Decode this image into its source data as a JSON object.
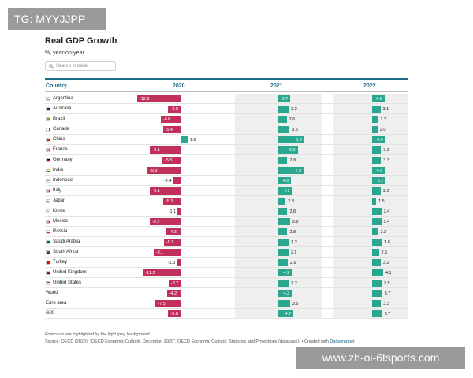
{
  "tag_label": "TG: MYYJJPP",
  "watermark": "www.zh-oi-6tsports.com",
  "title": "Real GDP Growth",
  "subtitle": "%, year-on-year",
  "search": {
    "placeholder": "Search in table"
  },
  "columns": {
    "country": "Country",
    "y2020": "2020",
    "y2021": "2021",
    "y2022": "2022"
  },
  "colors": {
    "negative": "#c0305a",
    "positive": "#2aa88f",
    "header": "#1d6b8c",
    "forecast_bg": "#efefef"
  },
  "rows": [
    {
      "country": "Argentina",
      "flag": "argentina-flag-icon",
      "v2020": -12.9,
      "v2021": 3.7,
      "v2022": 4.6
    },
    {
      "country": "Australia",
      "flag": "australia-flag-icon",
      "v2020": -3.8,
      "v2021": 3.2,
      "v2022": 3.1
    },
    {
      "country": "Brazil",
      "flag": "brazil-flag-icon",
      "v2020": -6.0,
      "v2021": 2.6,
      "v2022": 2.2
    },
    {
      "country": "Canada",
      "flag": "canada-flag-icon",
      "v2020": -5.4,
      "v2021": 3.5,
      "v2022": 2.0
    },
    {
      "country": "China",
      "flag": "china-flag-icon",
      "v2020": 1.8,
      "v2021": 8.0,
      "v2022": 4.9
    },
    {
      "country": "France",
      "flag": "france-flag-icon",
      "v2020": -9.1,
      "v2021": 6.0,
      "v2022": 3.3
    },
    {
      "country": "Germany",
      "flag": "germany-flag-icon",
      "v2020": -5.5,
      "v2021": 2.8,
      "v2022": 3.3
    },
    {
      "country": "India",
      "flag": "india-flag-icon",
      "v2020": -9.9,
      "v2021": 7.9,
      "v2022": 4.8
    },
    {
      "country": "Indonesia",
      "flag": "indonesia-flag-icon",
      "v2020": -2.4,
      "v2021": 4.0,
      "v2022": 5.1
    },
    {
      "country": "Italy",
      "flag": "italy-flag-icon",
      "v2020": -9.1,
      "v2021": 4.3,
      "v2022": 3.2
    },
    {
      "country": "Japan",
      "flag": "japan-flag-icon",
      "v2020": -5.3,
      "v2021": 2.3,
      "v2022": 1.5
    },
    {
      "country": "Korea",
      "flag": "korea-flag-icon",
      "v2020": -1.1,
      "v2021": 2.8,
      "v2022": 3.4
    },
    {
      "country": "Mexico",
      "flag": "mexico-flag-icon",
      "v2020": -9.2,
      "v2021": 3.6,
      "v2022": 3.4
    },
    {
      "country": "Russia",
      "flag": "russia-flag-icon",
      "v2020": -4.3,
      "v2021": 2.8,
      "v2022": 2.2
    },
    {
      "country": "Saudi Arabia",
      "flag": "saudi-arabia-flag-icon",
      "v2020": -5.1,
      "v2021": 3.2,
      "v2022": 3.6
    },
    {
      "country": "South Africa",
      "flag": "south-africa-flag-icon",
      "v2020": -8.1,
      "v2021": 3.1,
      "v2022": 2.5
    },
    {
      "country": "Turkey",
      "flag": "turkey-flag-icon",
      "v2020": -1.3,
      "v2021": 2.9,
      "v2022": 3.2
    },
    {
      "country": "United Kingdom",
      "flag": "uk-flag-icon",
      "v2020": -11.2,
      "v2021": 4.2,
      "v2022": 4.1
    },
    {
      "country": "United States",
      "flag": "usa-flag-icon",
      "v2020": -3.7,
      "v2021": 3.2,
      "v2022": 3.5
    },
    {
      "country": "World",
      "flag": "",
      "v2020": -4.2,
      "v2021": 4.2,
      "v2022": 3.7
    },
    {
      "country": "Euro area",
      "flag": "",
      "v2020": -7.5,
      "v2021": 3.6,
      "v2022": 3.3
    },
    {
      "country": "G20",
      "flag": "",
      "v2020": -3.8,
      "v2021": 4.7,
      "v2022": 3.7
    }
  ],
  "note": "Forecasts are highlighted by the light grey background",
  "source": {
    "text": "Source: OECD (2020), \"OECD Economic Outlook, December 2020\", OECD Economic Outlook: Statistics and Projections (database). • Created with ",
    "link": "Datawrapper"
  }
}
